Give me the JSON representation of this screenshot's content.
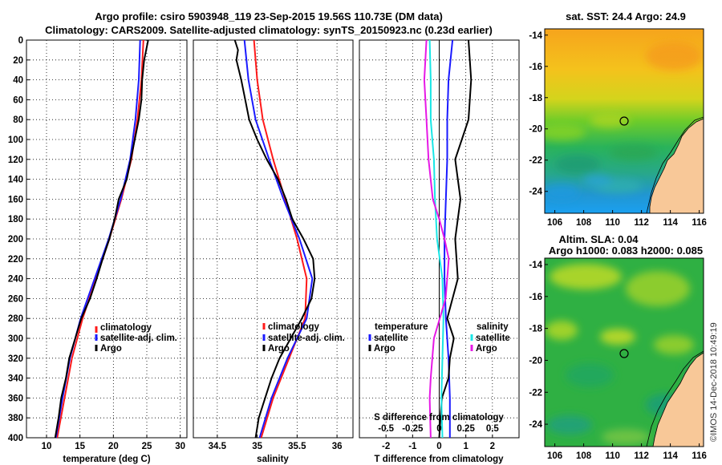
{
  "figure": {
    "title_line1": "Argo profile: csiro 5903948_119 23-Sep-2015 19.56S 110.73E (DM data)",
    "title_line2": "Climatology: CARS2009. Satellite-adjusted climatology: synTS_20150923.nc (0.23d earlier)",
    "watermark": "©IMOS 14-Dec-2018 10:49:19",
    "colors": {
      "climatology": "#ff1a1a",
      "satellite": "#1a1aff",
      "argo": "#000000",
      "sal_sat": "#19e6e6",
      "sal_argo": "#e619e6",
      "land": "#f8c898"
    }
  },
  "chart_data": [
    {
      "id": "temperature",
      "type": "line",
      "xlabel": "temperature (deg C)",
      "xlim": [
        7,
        31
      ],
      "xticks": [
        10,
        15,
        20,
        25,
        30
      ],
      "xtick_labels": [
        "10",
        "15",
        "20",
        "25",
        "30"
      ],
      "ylim": [
        0,
        400
      ],
      "yticks": [
        0,
        20,
        40,
        60,
        80,
        100,
        120,
        140,
        160,
        180,
        200,
        220,
        240,
        260,
        280,
        300,
        320,
        340,
        360,
        380,
        400
      ],
      "ytick_labels": [
        "0",
        "20",
        "40",
        "60",
        "80",
        "100",
        "120",
        "140",
        "160",
        "180",
        "200",
        "220",
        "240",
        "260",
        "280",
        "300",
        "320",
        "340",
        "360",
        "380",
        "400"
      ],
      "legend": [
        "climatology",
        "satellite-adj. clim.",
        "Argo"
      ],
      "series": [
        {
          "name": "climatology",
          "color": "#ff1a1a",
          "depth": [
            0,
            40,
            80,
            120,
            160,
            200,
            240,
            280,
            320,
            360,
            400
          ],
          "values": [
            24.5,
            24.2,
            23.6,
            22.7,
            21.2,
            19.4,
            17.4,
            15.4,
            13.8,
            12.7,
            11.6
          ]
        },
        {
          "name": "satellite-adj. clim.",
          "color": "#1a1aff",
          "depth": [
            0,
            40,
            80,
            120,
            160,
            200,
            240,
            280,
            320,
            360,
            400
          ],
          "values": [
            24.0,
            23.8,
            23.3,
            22.5,
            21.1,
            19.3,
            17.2,
            15.1,
            13.5,
            12.4,
            11.4
          ]
        },
        {
          "name": "Argo",
          "color": "#000000",
          "depth": [
            0,
            20,
            40,
            60,
            80,
            100,
            120,
            140,
            160,
            180,
            200,
            220,
            240,
            260,
            280,
            300,
            320,
            340,
            360,
            380,
            400
          ],
          "values": [
            25.2,
            24.6,
            24.3,
            24.2,
            23.8,
            23.2,
            22.6,
            22.0,
            20.8,
            20.2,
            19.4,
            18.4,
            17.5,
            16.5,
            15.2,
            14.3,
            13.4,
            12.9,
            12.2,
            11.8,
            11.3
          ]
        }
      ]
    },
    {
      "id": "salinity",
      "type": "line",
      "xlabel": "salinity",
      "xlim": [
        34.2,
        36.2
      ],
      "xticks": [
        34.5,
        35,
        35.5,
        36
      ],
      "xtick_labels": [
        "34.5",
        "35",
        "35.5",
        "36"
      ],
      "ylim": [
        0,
        400
      ],
      "legend": [
        "climatology",
        "satellite-adj. clim.",
        "Argo"
      ],
      "series": [
        {
          "name": "climatology",
          "color": "#ff1a1a",
          "depth": [
            0,
            40,
            80,
            120,
            160,
            200,
            240,
            280,
            320,
            360,
            400
          ],
          "values": [
            34.96,
            35.0,
            35.07,
            35.2,
            35.35,
            35.5,
            35.62,
            35.6,
            35.4,
            35.2,
            35.05
          ]
        },
        {
          "name": "satellite-adj. clim.",
          "color": "#1a1aff",
          "depth": [
            0,
            40,
            80,
            120,
            160,
            200,
            240,
            280,
            320,
            360,
            400
          ],
          "values": [
            34.84,
            34.89,
            34.98,
            35.15,
            35.33,
            35.53,
            35.69,
            35.62,
            35.38,
            35.18,
            35.03
          ]
        },
        {
          "name": "Argo",
          "color": "#000000",
          "depth": [
            0,
            10,
            20,
            40,
            60,
            80,
            100,
            120,
            140,
            160,
            180,
            200,
            220,
            240,
            260,
            280,
            300,
            320,
            340,
            360,
            380,
            400
          ],
          "values": [
            34.72,
            34.76,
            34.74,
            34.8,
            34.85,
            34.9,
            35.0,
            35.12,
            35.26,
            35.36,
            35.44,
            35.58,
            35.7,
            35.72,
            35.68,
            35.56,
            35.42,
            35.28,
            35.18,
            35.1,
            35.02,
            34.98
          ]
        }
      ]
    },
    {
      "id": "differences",
      "type": "line",
      "xlabel": "T difference from climatology",
      "xlabel_top": "S difference from climatology",
      "xlim": [
        -3,
        3
      ],
      "xticks": [
        -2,
        -1,
        0,
        1,
        2
      ],
      "xtick_labels": [
        "-2",
        "-1",
        "0",
        "1",
        "2"
      ],
      "xticks_top": [
        -0.5,
        -0.25,
        0,
        0.25,
        0.5
      ],
      "xtick_labels_top": [
        "-0.5",
        "-0.25",
        "0",
        "0.25",
        "0.5"
      ],
      "ylim": [
        0,
        400
      ],
      "legend_left_title": "temperature",
      "legend_left": [
        "satellite",
        "Argo"
      ],
      "legend_right_title": "salinity",
      "legend_right": [
        "satellite",
        "Argo"
      ],
      "series": [
        {
          "name": "temperature satellite",
          "color": "#1a1aff",
          "depth": [
            0,
            40,
            80,
            120,
            160,
            200,
            240,
            280,
            320,
            360,
            400
          ],
          "values": [
            0.5,
            0.35,
            0.3,
            0.3,
            0.25,
            0.2,
            0.2,
            0.25,
            0.35,
            0.4,
            0.4
          ]
        },
        {
          "name": "temperature Argo",
          "color": "#000000",
          "depth": [
            0,
            40,
            80,
            120,
            160,
            200,
            240,
            280,
            300,
            320,
            340,
            360,
            400
          ],
          "values": [
            1.1,
            1.2,
            1.1,
            0.6,
            0.8,
            0.6,
            0.7,
            0.3,
            0.55,
            0.4,
            0.35,
            0.1,
            0.0
          ]
        },
        {
          "name": "salinity satellite",
          "color": "#19e6e6",
          "depth": [
            0,
            40,
            80,
            120,
            160,
            200,
            240,
            280,
            320,
            360,
            400
          ],
          "values": [
            -0.09,
            -0.08,
            -0.08,
            -0.05,
            -0.04,
            -0.02,
            0.03,
            0.04,
            0.03,
            0.02,
            0.03
          ]
        },
        {
          "name": "salinity Argo",
          "color": "#e619e6",
          "depth": [
            0,
            40,
            80,
            120,
            160,
            180,
            200,
            220,
            260,
            300,
            340,
            360,
            400
          ],
          "values": [
            -0.12,
            -0.14,
            -0.12,
            -0.1,
            -0.06,
            0.0,
            0.05,
            0.09,
            0.06,
            -0.05,
            -0.08,
            -0.09,
            -0.08
          ]
        }
      ]
    },
    {
      "id": "sst_map",
      "type": "heatmap",
      "title": "sat. SST: 24.4 Argo: 24.9",
      "xticks": [
        106,
        108,
        110,
        112,
        114,
        116
      ],
      "xtick_labels": [
        "106",
        "108",
        "110",
        "112",
        "114",
        "116"
      ],
      "yticks": [
        -14,
        -16,
        -18,
        -20,
        -22,
        -24
      ],
      "ytick_labels": [
        "-14",
        "-16",
        "-18",
        "-20",
        "-22",
        "-24"
      ],
      "xlim": [
        105.3,
        116.3
      ],
      "ylim": [
        -25.4,
        -13.6
      ],
      "marker": {
        "lon": 110.73,
        "lat": -19.56
      }
    },
    {
      "id": "sla_map",
      "type": "heatmap",
      "title_line1": "Altim. SLA: 0.04",
      "title_line2": "Argo h1000: 0.083 h2000: 0.085",
      "xticks": [
        106,
        108,
        110,
        112,
        114,
        116
      ],
      "xtick_labels": [
        "106",
        "108",
        "110",
        "112",
        "114",
        "116"
      ],
      "yticks": [
        -14,
        -16,
        -18,
        -20,
        -22,
        -24
      ],
      "ytick_labels": [
        "-14",
        "-16",
        "-18",
        "-20",
        "-22",
        "-24"
      ],
      "xlim": [
        105.3,
        116.3
      ],
      "ylim": [
        -25.4,
        -13.6
      ],
      "marker": {
        "lon": 110.73,
        "lat": -19.56
      }
    }
  ]
}
